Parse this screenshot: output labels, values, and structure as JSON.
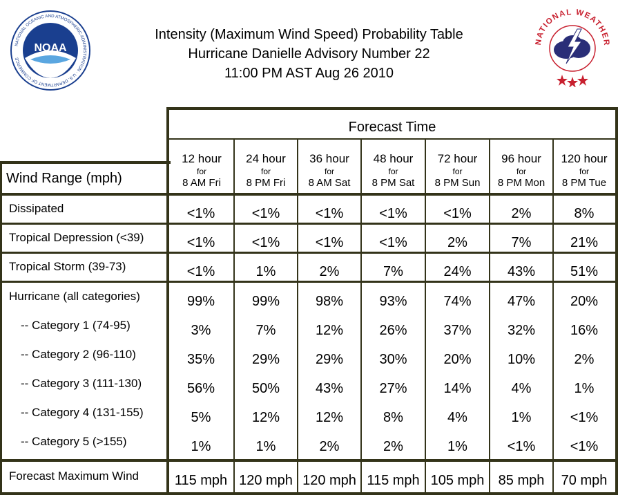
{
  "header": {
    "title_line1": "Intensity (Maximum Wind Speed) Probability Table",
    "title_line2": "Hurricane Danielle Advisory Number 22",
    "title_line3": "11:00 PM AST Aug 26 2010",
    "left_logo": {
      "text": "NOAA",
      "ring_text": "NATIONAL OCEANIC AND ATMOSPHERIC ADMINISTRATION · U.S. DEPARTMENT OF COMMERCE",
      "color": "#1a3f8f"
    },
    "right_logo": {
      "ring_text": "NATIONAL WEATHER SERVICE",
      "color": "#c8202f"
    }
  },
  "table": {
    "forecast_time_label": "Forecast Time",
    "wind_range_label": "Wind Range (mph)",
    "columns": [
      {
        "hour": "12 hour",
        "for": "for",
        "when": "8 AM Fri"
      },
      {
        "hour": "24 hour",
        "for": "for",
        "when": "8 PM Fri"
      },
      {
        "hour": "36 hour",
        "for": "for",
        "when": "8 AM Sat"
      },
      {
        "hour": "48 hour",
        "for": "for",
        "when": "8 PM Sat"
      },
      {
        "hour": "72 hour",
        "for": "for",
        "when": "8 PM Sun"
      },
      {
        "hour": "96 hour",
        "for": "for",
        "when": "8 PM Mon"
      },
      {
        "hour": "120 hour",
        "for": "for",
        "when": "8 PM Tue"
      }
    ],
    "rows": [
      {
        "label": "Dissipated",
        "values": [
          "<1%",
          "<1%",
          "<1%",
          "<1%",
          "<1%",
          "2%",
          "8%"
        ]
      },
      {
        "label": "Tropical Depression (<39)",
        "values": [
          "<1%",
          "<1%",
          "<1%",
          "<1%",
          "2%",
          "7%",
          "21%"
        ]
      },
      {
        "label": "Tropical Storm (39-73)",
        "values": [
          "<1%",
          "1%",
          "2%",
          "7%",
          "24%",
          "43%",
          "51%"
        ]
      },
      {
        "label": "Hurricane (all categories)",
        "values": [
          "99%",
          "99%",
          "98%",
          "93%",
          "74%",
          "47%",
          "20%"
        ]
      },
      {
        "label": "-- Category 1 (74-95)",
        "values": [
          "3%",
          "7%",
          "12%",
          "26%",
          "37%",
          "32%",
          "16%"
        ]
      },
      {
        "label": "-- Category 2 (96-110)",
        "values": [
          "35%",
          "29%",
          "29%",
          "30%",
          "20%",
          "10%",
          "2%"
        ]
      },
      {
        "label": "-- Category 3 (111-130)",
        "values": [
          "56%",
          "50%",
          "43%",
          "27%",
          "14%",
          "4%",
          "1%"
        ]
      },
      {
        "label": "-- Category 4 (131-155)",
        "values": [
          "5%",
          "12%",
          "12%",
          "8%",
          "4%",
          "1%",
          "<1%"
        ]
      },
      {
        "label": "-- Category 5 (>155)",
        "values": [
          "1%",
          "1%",
          "2%",
          "2%",
          "1%",
          "<1%",
          "<1%"
        ]
      },
      {
        "label": "Forecast Maximum Wind",
        "values": [
          "115 mph",
          "120 mph",
          "120 mph",
          "115 mph",
          "105 mph",
          "85 mph",
          "70 mph"
        ]
      }
    ]
  }
}
